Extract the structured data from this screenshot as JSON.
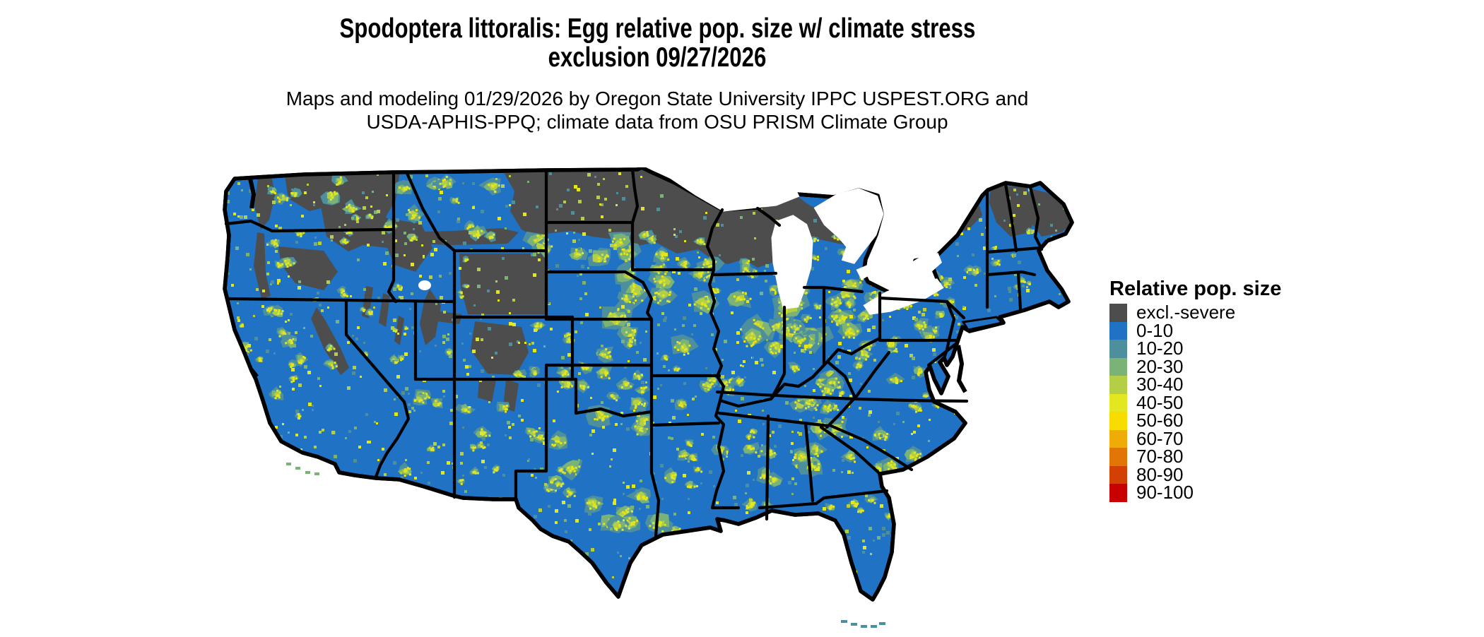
{
  "header": {
    "title_line1": "Spodoptera littoralis: Egg relative pop. size w/ climate stress",
    "title_line2": "exclusion 09/27/2026",
    "subtitle_line1": "Maps and modeling 01/29/2026 by Oregon State University IPPC USPEST.ORG and",
    "subtitle_line2": "USDA-APHIS-PPQ; climate data from OSU PRISM Climate Group"
  },
  "legend": {
    "title": "Relative pop. size",
    "items": [
      {
        "label": "excl.-severe",
        "color": "#4d4d4d"
      },
      {
        "label": "0-10",
        "color": "#1f72c4"
      },
      {
        "label": "10-20",
        "color": "#4e8f9e"
      },
      {
        "label": "20-30",
        "color": "#7ab375"
      },
      {
        "label": "30-40",
        "color": "#b4ce45"
      },
      {
        "label": "40-50",
        "color": "#e3e71f"
      },
      {
        "label": "50-60",
        "color": "#f8dc00"
      },
      {
        "label": "60-70",
        "color": "#efac06"
      },
      {
        "label": "70-80",
        "color": "#e17604"
      },
      {
        "label": "80-90",
        "color": "#d34003"
      },
      {
        "label": "90-100",
        "color": "#c90000"
      }
    ]
  },
  "map": {
    "region": "Continental United States",
    "border_color": "#000000",
    "water_color": "#ffffff"
  }
}
